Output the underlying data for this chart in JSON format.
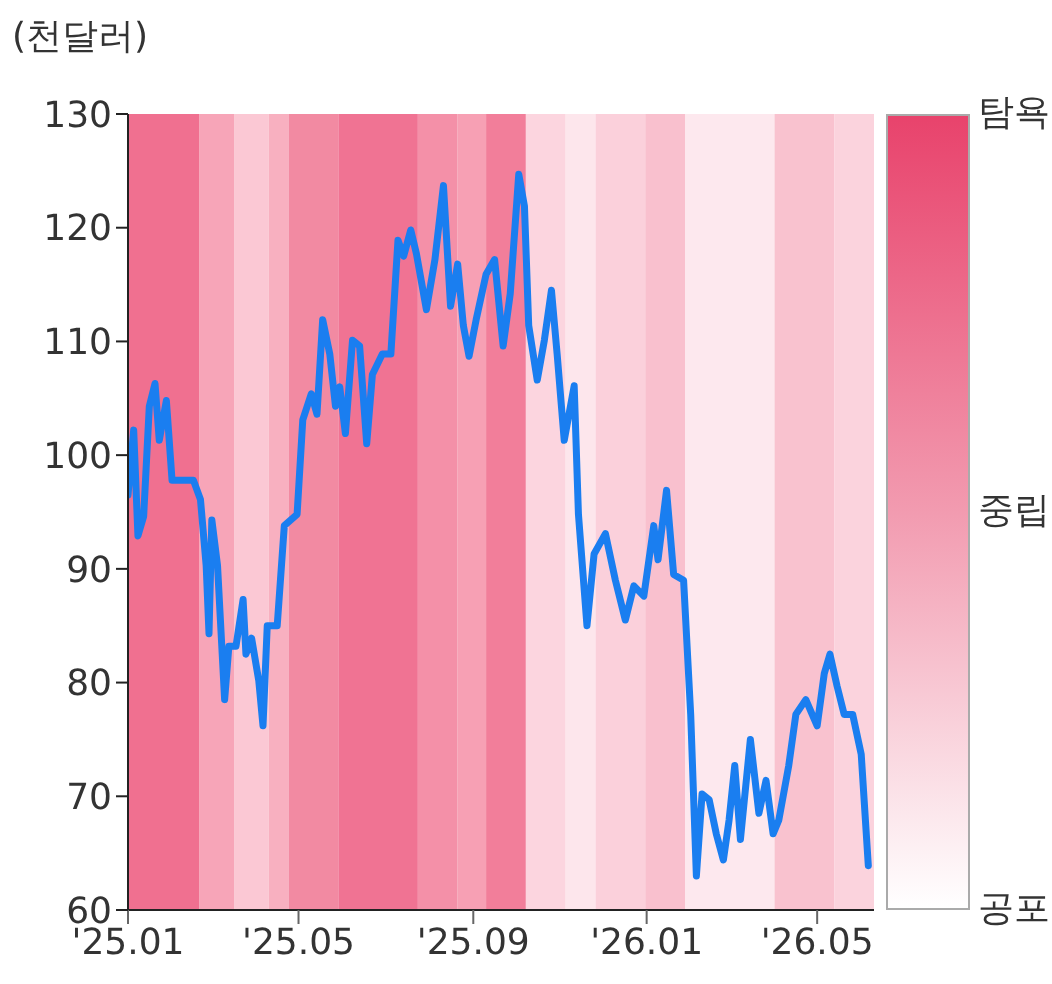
{
  "chart_data": {
    "type": "line",
    "ylabel": "(천달러)",
    "xlim": [
      "2025-01-01",
      "2026-06-10"
    ],
    "ylim": [
      60,
      130
    ],
    "yticks": [
      60,
      70,
      80,
      90,
      100,
      110,
      120,
      130
    ],
    "xticks": [
      {
        "value": "2025-01",
        "label": "'25.01"
      },
      {
        "value": "2025-05",
        "label": "'25.05"
      },
      {
        "value": "2025-09",
        "label": "'25.09"
      },
      {
        "value": "2026-01",
        "label": "'26.01"
      },
      {
        "value": "2026-05",
        "label": "'26.05"
      }
    ],
    "grid": false,
    "marker": "none",
    "line_style": "solid",
    "clim": [
      0,
      100
    ],
    "cticks": [
      {
        "value": 0,
        "label": "공포"
      },
      {
        "value": 50,
        "label": "중립"
      },
      {
        "value": 100,
        "label": "탐욕"
      }
    ],
    "bands": [
      {
        "axis": "x",
        "from": "2025-01-01",
        "to": "2025-02-20",
        "color": "#f07090"
      },
      {
        "axis": "x",
        "from": "2025-02-20",
        "to": "2025-03-17",
        "color": "#f7a5b8"
      },
      {
        "axis": "x",
        "from": "2025-03-17",
        "to": "2025-04-10",
        "color": "#fbc8d4"
      },
      {
        "axis": "x",
        "from": "2025-04-10",
        "to": "2025-04-24",
        "color": "#f8b0c0"
      },
      {
        "axis": "x",
        "from": "2025-04-24",
        "to": "2025-05-29",
        "color": "#f28aa2"
      },
      {
        "axis": "x",
        "from": "2025-05-29",
        "to": "2025-07-24",
        "color": "#f07393"
      },
      {
        "axis": "x",
        "from": "2025-07-24",
        "to": "2025-08-21",
        "color": "#f490a8"
      },
      {
        "axis": "x",
        "from": "2025-08-21",
        "to": "2025-09-10",
        "color": "#f7a0b4"
      },
      {
        "axis": "x",
        "from": "2025-09-10",
        "to": "2025-10-08",
        "color": "#f27e9a"
      },
      {
        "axis": "x",
        "from": "2025-10-08",
        "to": "2025-11-05",
        "color": "#fcd5df"
      },
      {
        "axis": "x",
        "from": "2025-11-05",
        "to": "2025-11-26",
        "color": "#fde6ec"
      },
      {
        "axis": "x",
        "from": "2025-11-26",
        "to": "2025-12-31",
        "color": "#fbd0db"
      },
      {
        "axis": "x",
        "from": "2025-12-31",
        "to": "2026-01-28",
        "color": "#f9c0ce"
      },
      {
        "axis": "x",
        "from": "2026-01-28",
        "to": "2026-04-01",
        "color": "#fde8ee"
      },
      {
        "axis": "x",
        "from": "2026-04-01",
        "to": "2026-05-13",
        "color": "#f9c2cf"
      },
      {
        "axis": "x",
        "from": "2026-05-13",
        "to": "2026-06-10",
        "color": "#fbd3dd"
      }
    ],
    "series": [
      {
        "color": "#1a7ef0",
        "x": [
          "2025-01-01",
          "2025-01-05",
          "2025-01-08",
          "2025-01-12",
          "2025-01-16",
          "2025-01-20",
          "2025-01-23",
          "2025-01-28",
          "2025-02-01",
          "2025-02-09",
          "2025-02-16",
          "2025-02-21",
          "2025-02-25",
          "2025-02-27",
          "2025-03-01",
          "2025-03-05",
          "2025-03-10",
          "2025-03-13",
          "2025-03-18",
          "2025-03-23",
          "2025-03-25",
          "2025-03-29",
          "2025-04-03",
          "2025-04-06",
          "2025-04-09",
          "2025-04-16",
          "2025-04-21",
          "2025-04-30",
          "2025-05-04",
          "2025-05-10",
          "2025-05-14",
          "2025-05-18",
          "2025-05-23",
          "2025-05-27",
          "2025-05-30",
          "2025-06-03",
          "2025-06-08",
          "2025-06-13",
          "2025-06-18",
          "2025-06-22",
          "2025-06-29",
          "2025-07-05",
          "2025-07-10",
          "2025-07-14",
          "2025-07-19",
          "2025-07-23",
          "2025-07-30",
          "2025-08-05",
          "2025-08-11",
          "2025-08-16",
          "2025-08-21",
          "2025-08-25",
          "2025-08-29",
          "2025-09-03",
          "2025-09-10",
          "2025-09-16",
          "2025-09-22",
          "2025-09-27",
          "2025-10-03",
          "2025-10-07",
          "2025-10-10",
          "2025-10-16",
          "2025-10-21",
          "2025-10-26",
          "2025-10-30",
          "2025-11-04",
          "2025-11-11",
          "2025-11-14",
          "2025-11-20",
          "2025-11-25",
          "2025-12-03",
          "2025-12-10",
          "2025-12-17",
          "2025-12-23",
          "2025-12-30",
          "2026-01-06",
          "2026-01-09",
          "2026-01-15",
          "2026-01-20",
          "2026-01-27",
          "2026-02-01",
          "2026-02-05",
          "2026-02-09",
          "2026-02-14",
          "2026-02-19",
          "2026-02-24",
          "2026-02-28",
          "2026-03-04",
          "2026-03-08",
          "2026-03-15",
          "2026-03-21",
          "2026-03-26",
          "2026-03-31",
          "2026-04-04",
          "2026-04-11",
          "2026-04-16",
          "2026-04-23",
          "2026-05-01",
          "2026-05-06",
          "2026-05-10",
          "2026-05-15",
          "2026-05-20",
          "2026-05-26",
          "2026-06-01",
          "2026-06-06"
        ],
        "values": [
          96.5,
          102.2,
          92.9,
          94.6,
          104.3,
          106.3,
          101.3,
          104.8,
          97.8,
          97.8,
          97.8,
          96.1,
          90.3,
          84.3,
          94.3,
          90.3,
          78.5,
          83.2,
          83.2,
          87.3,
          82.5,
          83.9,
          80.2,
          76.2,
          85.0,
          85.0,
          93.8,
          94.8,
          103.1,
          105.4,
          103.6,
          111.9,
          108.9,
          104.3,
          106.0,
          101.9,
          110.1,
          109.6,
          101.0,
          107.1,
          108.9,
          108.9,
          118.9,
          117.5,
          119.8,
          117.7,
          112.8,
          117.2,
          123.7,
          113.1,
          116.8,
          111.4,
          108.7,
          111.9,
          115.9,
          117.2,
          109.6,
          114.2,
          124.7,
          121.9,
          111.4,
          106.6,
          110.1,
          114.5,
          108.9,
          101.3,
          106.1,
          94.8,
          85.0,
          91.3,
          93.1,
          89.0,
          85.5,
          88.5,
          87.6,
          93.8,
          90.8,
          96.9,
          89.5,
          89.0,
          77.2,
          63.0,
          70.2,
          69.7,
          66.7,
          64.4,
          67.9,
          72.7,
          66.2,
          75.0,
          68.5,
          71.4,
          66.7,
          67.9,
          72.7,
          77.2,
          78.5,
          76.2,
          80.8,
          82.5,
          79.7,
          77.2,
          77.2,
          73.7,
          63.9
        ]
      }
    ]
  }
}
